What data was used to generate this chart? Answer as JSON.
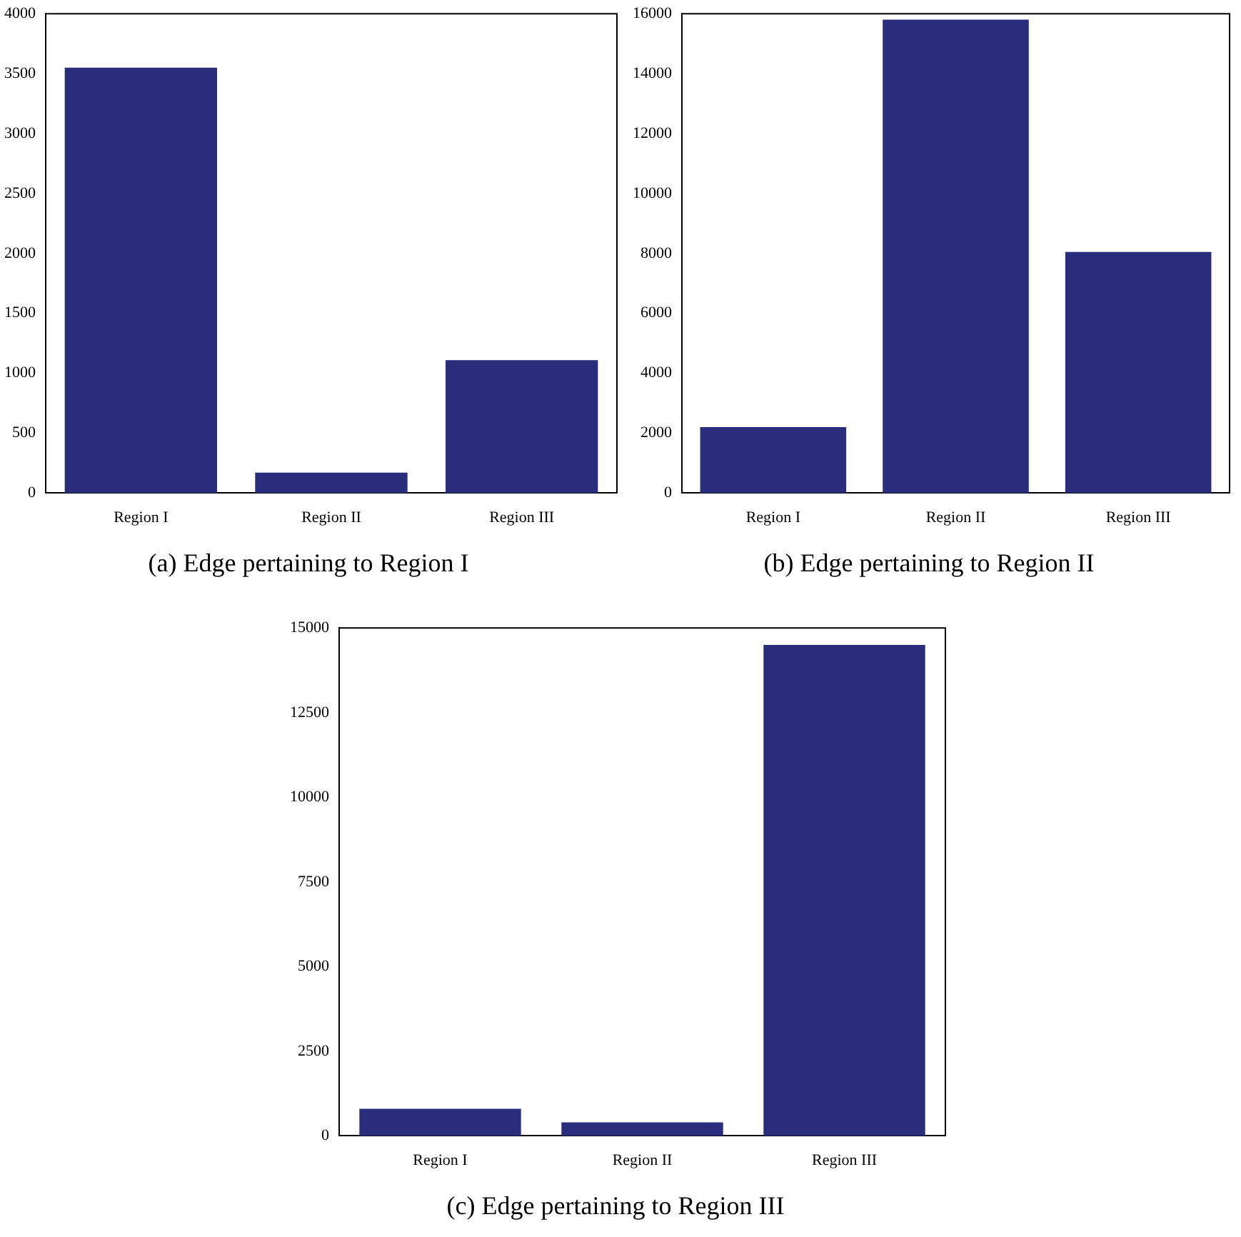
{
  "chart_data": [
    {
      "type": "bar",
      "title": "(a) Edge pertaining to Region I",
      "categories": [
        "Region I",
        "Region II",
        "Region III"
      ],
      "values": [
        3550,
        170,
        1110
      ],
      "color": "#2a2d7c",
      "ylim": [
        0,
        4000
      ],
      "yticks": [
        0,
        500,
        1000,
        1500,
        2000,
        2500,
        3000,
        3500,
        4000
      ],
      "grid": false
    },
    {
      "type": "bar",
      "title": "(b) Edge pertaining to Region II",
      "categories": [
        "Region I",
        "Region II",
        "Region III"
      ],
      "values": [
        2200,
        15800,
        8050
      ],
      "color": "#2a2d7c",
      "ylim": [
        0,
        16000
      ],
      "yticks": [
        0,
        2000,
        4000,
        6000,
        8000,
        10000,
        12000,
        14000,
        16000
      ],
      "grid": false
    },
    {
      "type": "bar",
      "title": "(c) Edge pertaining to Region III",
      "categories": [
        "Region I",
        "Region II",
        "Region III"
      ],
      "values": [
        800,
        400,
        14500
      ],
      "color": "#2a2d7c",
      "ylim": [
        0,
        15000
      ],
      "yticks": [
        0,
        2500,
        5000,
        7500,
        10000,
        12500,
        15000
      ],
      "grid": false
    }
  ]
}
